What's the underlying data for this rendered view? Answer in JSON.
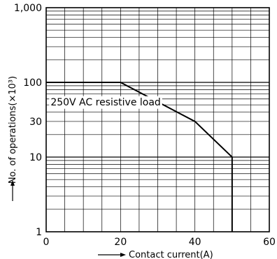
{
  "chart_data": {
    "type": "line",
    "title": "",
    "xlabel": "Contact current(A)",
    "ylabel": "No. of operations(×10³)",
    "xlim": [
      0,
      60
    ],
    "ylim": [
      1,
      1000
    ],
    "yscale": "log",
    "grid": true,
    "x_ticks": [
      "0",
      "20",
      "40",
      "60"
    ],
    "y_ticks": [
      {
        "value": 1000,
        "label": "1,000"
      },
      {
        "value": 100,
        "label": "100"
      },
      {
        "value": 30,
        "label": "30"
      },
      {
        "value": 10,
        "label": "10"
      },
      {
        "value": 1,
        "label": "1"
      }
    ],
    "series": [
      {
        "name": "250V AC resistive load",
        "x": [
          0,
          20,
          40,
          50,
          50
        ],
        "y": [
          100,
          100,
          30,
          10,
          1
        ]
      }
    ],
    "annotations": [
      {
        "text": "250V AC resistive load",
        "x": 1,
        "y": 55
      }
    ],
    "colors": {
      "line": "#000000",
      "grid": "#000000",
      "background": "#ffffff"
    }
  }
}
